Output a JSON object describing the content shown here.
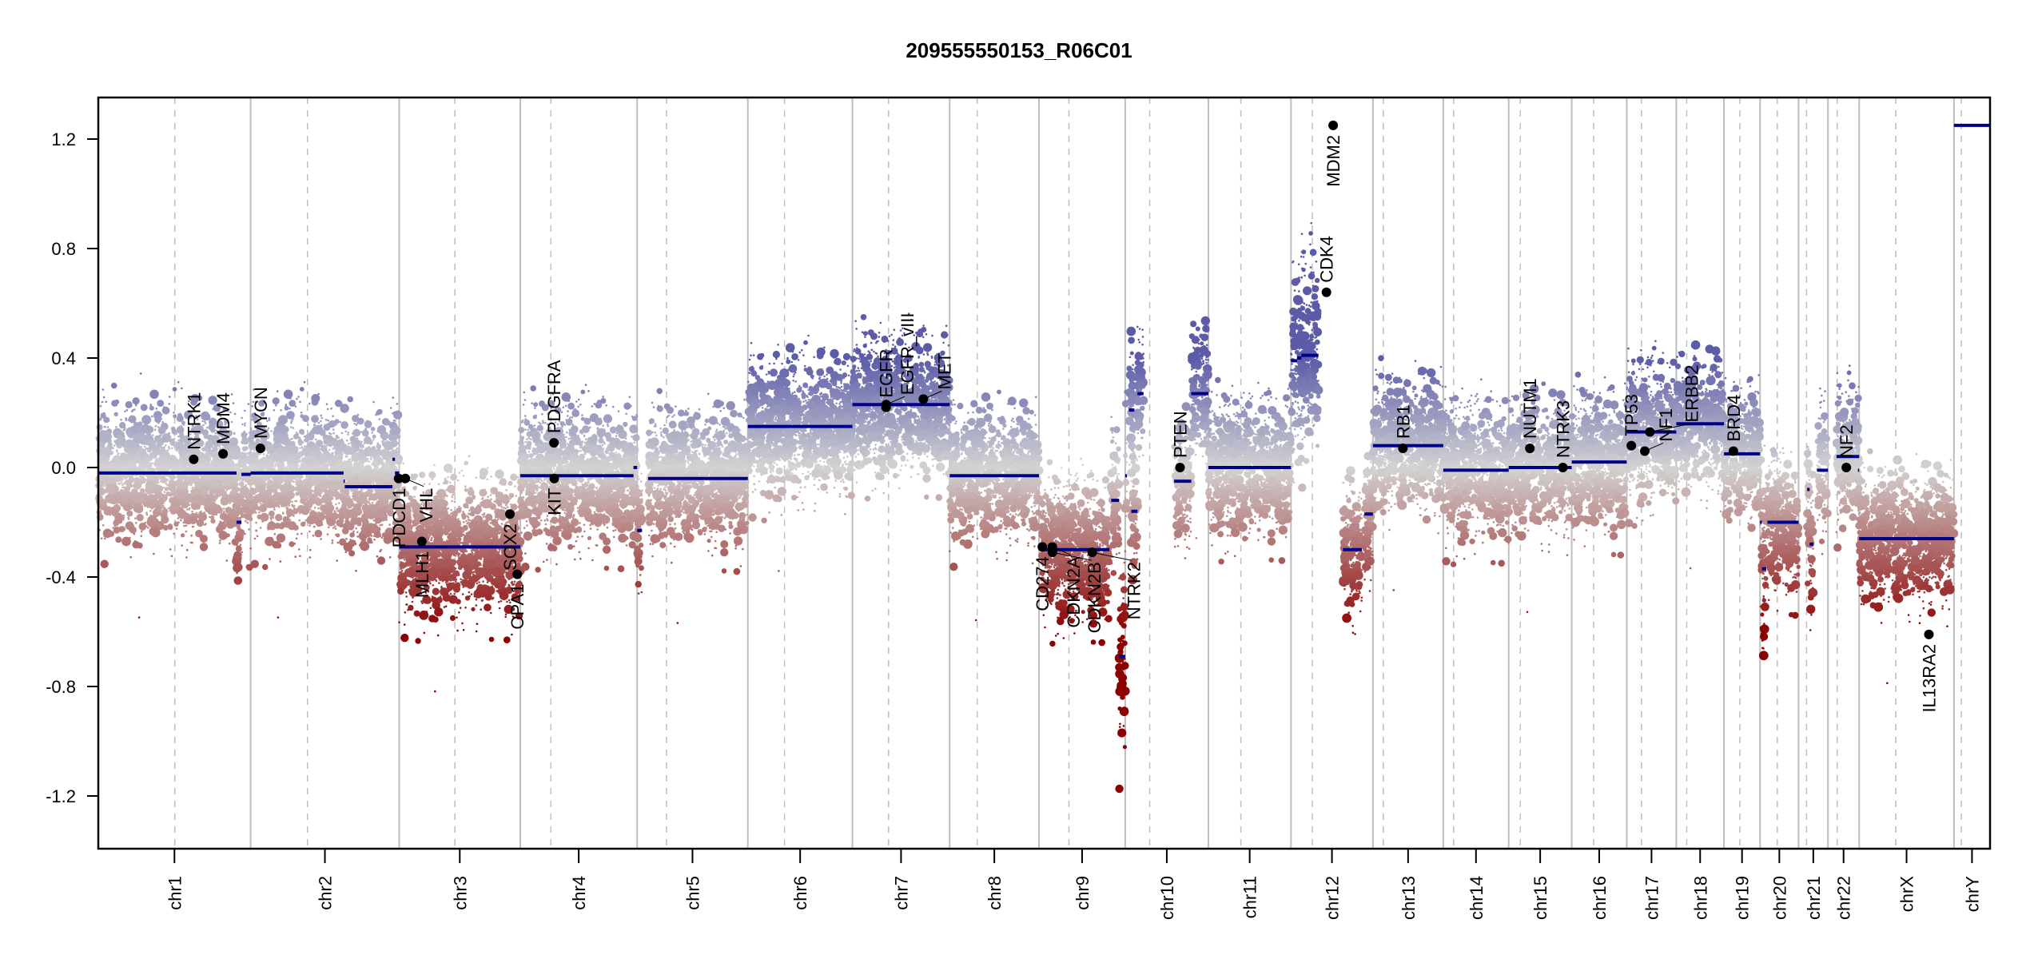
{
  "chart_data": {
    "type": "scatter",
    "title": "209555550153_R06C01",
    "xlabel": "",
    "ylabel": "",
    "ylim": [
      -1.35,
      1.35
    ],
    "yticks": [
      -1.2,
      -0.8,
      -0.4,
      0.0,
      0.4,
      0.8,
      1.2
    ],
    "ytick_labels": [
      "-1.2",
      "-0.8",
      "-0.4",
      "0.0",
      "0.4",
      "0.8",
      "1.2"
    ],
    "grid": false,
    "legend": "none",
    "x_unit": "Mb",
    "colors": {
      "segment": "#00008B",
      "gain": "#5B5BA8",
      "neutral": "#D3D3D3",
      "loss": "#8B0000",
      "gene_marker": "#000000",
      "chr_boundary": "#BEBEBE",
      "centromere": "#BEBEBE"
    },
    "chromosomes": [
      {
        "name": "chr1",
        "length": 249,
        "centromere": 125
      },
      {
        "name": "chr2",
        "length": 243,
        "centromere": 93
      },
      {
        "name": "chr3",
        "length": 198,
        "centromere": 91
      },
      {
        "name": "chr4",
        "length": 191,
        "centromere": 50
      },
      {
        "name": "chr5",
        "length": 181,
        "centromere": 48
      },
      {
        "name": "chr6",
        "length": 171,
        "centromere": 60
      },
      {
        "name": "chr7",
        "length": 159,
        "centromere": 59
      },
      {
        "name": "chr8",
        "length": 146,
        "centromere": 45
      },
      {
        "name": "chr9",
        "length": 141,
        "centromere": 49
      },
      {
        "name": "chr10",
        "length": 136,
        "centromere": 40
      },
      {
        "name": "chr11",
        "length": 135,
        "centromere": 53
      },
      {
        "name": "chr12",
        "length": 134,
        "centromere": 35
      },
      {
        "name": "chr13",
        "length": 115,
        "centromere": 17
      },
      {
        "name": "chr14",
        "length": 107,
        "centromere": 17
      },
      {
        "name": "chr15",
        "length": 103,
        "centromere": 19
      },
      {
        "name": "chr16",
        "length": 90,
        "centromere": 36
      },
      {
        "name": "chr17",
        "length": 81,
        "centromere": 24
      },
      {
        "name": "chr18",
        "length": 78,
        "centromere": 17
      },
      {
        "name": "chr19",
        "length": 59,
        "centromere": 26
      },
      {
        "name": "chr20",
        "length": 63,
        "centromere": 28
      },
      {
        "name": "chr21",
        "length": 48,
        "centromere": 13
      },
      {
        "name": "chr22",
        "length": 51,
        "centromere": 15
      },
      {
        "name": "chrX",
        "length": 155,
        "centromere": 60
      },
      {
        "name": "chrY",
        "length": 59,
        "centromere": 12
      }
    ],
    "segments": [
      {
        "chr": "chr1",
        "start": 0,
        "end": 226,
        "value": -0.02
      },
      {
        "chr": "chr1",
        "start": 226,
        "end": 234,
        "value": -0.2
      },
      {
        "chr": "chr1",
        "start": 234,
        "end": 249,
        "value": -0.025
      },
      {
        "chr": "chr2",
        "start": 0,
        "end": 152,
        "value": -0.02
      },
      {
        "chr": "chr2",
        "start": 152,
        "end": 154,
        "value": -0.05
      },
      {
        "chr": "chr2",
        "start": 154,
        "end": 232,
        "value": -0.07
      },
      {
        "chr": "chr2",
        "start": 232,
        "end": 236,
        "value": 0.03
      },
      {
        "chr": "chr2",
        "start": 236,
        "end": 243,
        "value": -0.02
      },
      {
        "chr": "chr3",
        "start": 0,
        "end": 198,
        "value": -0.29
      },
      {
        "chr": "chr4",
        "start": 0,
        "end": 185,
        "value": -0.03
      },
      {
        "chr": "chr4",
        "start": 185,
        "end": 191,
        "value": 0.0
      },
      {
        "chr": "chr5",
        "start": 0,
        "end": 8,
        "value": -0.23
      },
      {
        "chr": "chr5",
        "start": 18,
        "end": 181,
        "value": -0.04
      },
      {
        "chr": "chr6",
        "start": 0,
        "end": 171,
        "value": 0.15
      },
      {
        "chr": "chr7",
        "start": 0,
        "end": 159,
        "value": 0.23
      },
      {
        "chr": "chr8",
        "start": 0,
        "end": 146,
        "value": -0.03
      },
      {
        "chr": "chr9",
        "start": 5,
        "end": 115,
        "value": -0.3
      },
      {
        "chr": "chr9",
        "start": 118,
        "end": 131,
        "value": -0.12
      },
      {
        "chr": "chr9",
        "start": 131,
        "end": 141,
        "value": -0.69
      },
      {
        "chr": "chr10",
        "start": 0,
        "end": 3,
        "value": -0.03
      },
      {
        "chr": "chr10",
        "start": 6,
        "end": 15,
        "value": 0.21
      },
      {
        "chr": "chr10",
        "start": 10,
        "end": 20,
        "value": -0.16
      },
      {
        "chr": "chr10",
        "start": 20,
        "end": 30,
        "value": 0.27
      },
      {
        "chr": "chr10",
        "start": 80,
        "end": 108,
        "value": -0.05
      },
      {
        "chr": "chr10",
        "start": 108,
        "end": 136,
        "value": 0.27
      },
      {
        "chr": "chr11",
        "start": 0,
        "end": 135,
        "value": 0.0
      },
      {
        "chr": "chr12",
        "start": 0,
        "end": 10,
        "value": 0.39
      },
      {
        "chr": "chr12",
        "start": 10,
        "end": 17,
        "value": 0.4
      },
      {
        "chr": "chr12",
        "start": 17,
        "end": 45,
        "value": 0.41
      },
      {
        "chr": "chr12",
        "start": 85,
        "end": 116,
        "value": -0.3
      },
      {
        "chr": "chr12",
        "start": 120,
        "end": 134,
        "value": -0.17
      },
      {
        "chr": "chr13",
        "start": 0,
        "end": 115,
        "value": 0.08
      },
      {
        "chr": "chr14",
        "start": 0,
        "end": 107,
        "value": -0.01
      },
      {
        "chr": "chr15",
        "start": 0,
        "end": 103,
        "value": 0.0
      },
      {
        "chr": "chr16",
        "start": 0,
        "end": 90,
        "value": 0.02
      },
      {
        "chr": "chr17",
        "start": 0,
        "end": 81,
        "value": 0.13
      },
      {
        "chr": "chr18",
        "start": 0,
        "end": 78,
        "value": 0.16
      },
      {
        "chr": "chr19",
        "start": 0,
        "end": 59,
        "value": 0.05
      },
      {
        "chr": "chr20",
        "start": 0,
        "end": 3,
        "value": -0.2
      },
      {
        "chr": "chr20",
        "start": 3,
        "end": 10,
        "value": -0.37
      },
      {
        "chr": "chr20",
        "start": 12,
        "end": 63,
        "value": -0.2
      },
      {
        "chr": "chr21",
        "start": 14,
        "end": 18,
        "value": -0.08
      },
      {
        "chr": "chr21",
        "start": 18,
        "end": 24,
        "value": -0.28
      },
      {
        "chr": "chr21",
        "start": 30,
        "end": 48,
        "value": -0.01
      },
      {
        "chr": "chr22",
        "start": 14,
        "end": 51,
        "value": 0.04
      },
      {
        "chr": "chr22",
        "start": 49,
        "end": 51,
        "value": -0.01
      },
      {
        "chr": "chrX",
        "start": 0,
        "end": 155,
        "value": -0.26
      },
      {
        "chr": "chrY",
        "start": 0,
        "end": 59,
        "value": 1.25
      }
    ],
    "genes": [
      {
        "name": "NTRK1",
        "chr": "chr1",
        "pos": 156,
        "value": 0.03,
        "label_side": "above"
      },
      {
        "name": "MDM4",
        "chr": "chr1",
        "pos": 204,
        "value": 0.05,
        "label_side": "above"
      },
      {
        "name": "MYCN",
        "chr": "chr2",
        "pos": 16,
        "value": 0.07,
        "label_side": "above"
      },
      {
        "name": "PDCD1",
        "chr": "chr2",
        "pos": 242,
        "value": -0.04,
        "label_side": "below"
      },
      {
        "name": "VHL",
        "chr": "chr3",
        "pos": 10,
        "value": -0.04,
        "label_side": "below"
      },
      {
        "name": "MLH1",
        "chr": "chr3",
        "pos": 37,
        "value": -0.27,
        "label_side": "below"
      },
      {
        "name": "SOX2",
        "chr": "chr3",
        "pos": 181,
        "value": -0.17,
        "label_side": "below"
      },
      {
        "name": "OPA1",
        "chr": "chr3",
        "pos": 193,
        "value": -0.39,
        "label_side": "below"
      },
      {
        "name": "PDGFRA",
        "chr": "chr4",
        "pos": 55,
        "value": 0.09,
        "label_side": "above"
      },
      {
        "name": "KIT",
        "chr": "chr4",
        "pos": 55.5,
        "value": -0.04,
        "label_side": "below"
      },
      {
        "name": "EGFR",
        "chr": "chr7",
        "pos": 55,
        "value": 0.22,
        "label_side": "above"
      },
      {
        "name": "EGFR_vIII",
        "chr": "chr7",
        "pos": 55.2,
        "value": 0.23,
        "label_side": "above"
      },
      {
        "name": "MET",
        "chr": "chr7",
        "pos": 116,
        "value": 0.25,
        "label_side": "above"
      },
      {
        "name": "CD274",
        "chr": "chr9",
        "pos": 5.5,
        "value": -0.29,
        "label_side": "below"
      },
      {
        "name": "CDKN2A",
        "chr": "chr9",
        "pos": 21.9,
        "value": -0.29,
        "label_side": "below"
      },
      {
        "name": "CDKN2B",
        "chr": "chr9",
        "pos": 22.0,
        "value": -0.31,
        "label_side": "below"
      },
      {
        "name": "NTRK2",
        "chr": "chr9",
        "pos": 87,
        "value": -0.31,
        "label_side": "below"
      },
      {
        "name": "PTEN",
        "chr": "chr10",
        "pos": 89.6,
        "value": 0.0,
        "label_side": "above"
      },
      {
        "name": "CDK4",
        "chr": "chr12",
        "pos": 58,
        "value": 0.64,
        "label_side": "above"
      },
      {
        "name": "MDM2",
        "chr": "chr12",
        "pos": 69,
        "value": 1.25,
        "label_side": "below"
      },
      {
        "name": "RB1",
        "chr": "chr13",
        "pos": 49,
        "value": 0.07,
        "label_side": "above"
      },
      {
        "name": "NUTM1",
        "chr": "chr15",
        "pos": 34.6,
        "value": 0.07,
        "label_side": "above"
      },
      {
        "name": "NTRK3",
        "chr": "chr15",
        "pos": 88.5,
        "value": 0.0,
        "label_side": "above"
      },
      {
        "name": "TP53",
        "chr": "chr17",
        "pos": 7.5,
        "value": 0.08,
        "label_side": "above"
      },
      {
        "name": "NF1",
        "chr": "chr17",
        "pos": 29.5,
        "value": 0.06,
        "label_side": "above"
      },
      {
        "name": "ERBB2",
        "chr": "chr17",
        "pos": 37.9,
        "value": 0.13,
        "label_side": "above"
      },
      {
        "name": "BRD4",
        "chr": "chr19",
        "pos": 15.4,
        "value": 0.06,
        "label_side": "above"
      },
      {
        "name": "NF2",
        "chr": "chr22",
        "pos": 30,
        "value": 0.0,
        "label_side": "above"
      },
      {
        "name": "IL13RA2",
        "chr": "chrX",
        "pos": 114,
        "value": -0.61,
        "label_side": "below"
      }
    ]
  }
}
